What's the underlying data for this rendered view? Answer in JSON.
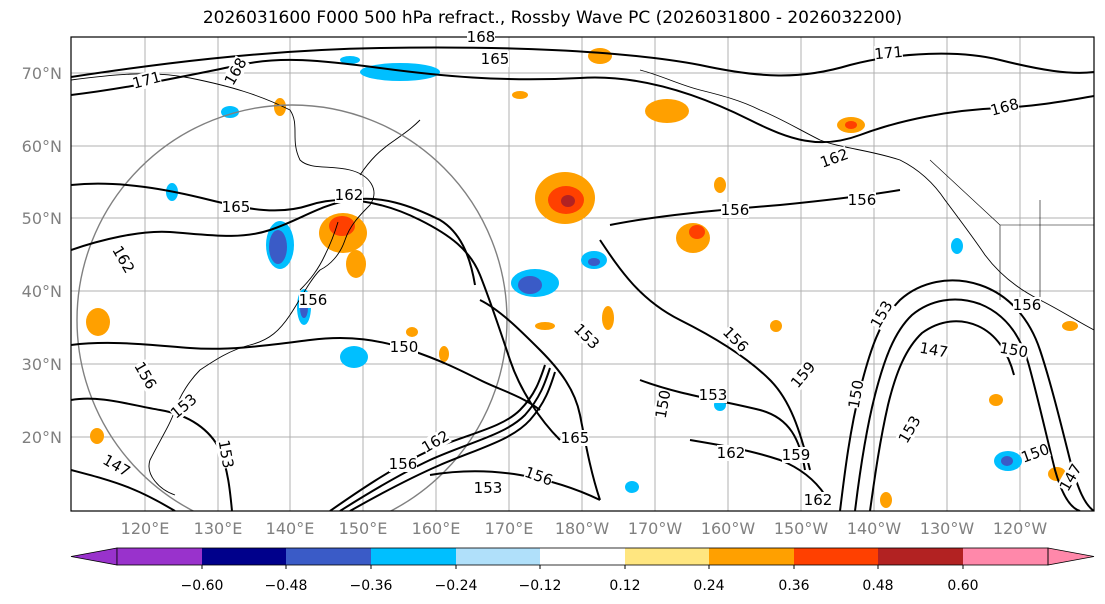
{
  "title": "2026031600 F000 500 hPa refract., Rossby Wave PC (2026031800 - 2026032200)",
  "lat_labels": [
    "70°N",
    "60°N",
    "50°N",
    "40°N",
    "30°N",
    "20°N"
  ],
  "lon_labels": [
    "120°E",
    "130°E",
    "140°E",
    "150°E",
    "160°E",
    "170°E",
    "180°W",
    "170°W",
    "160°W",
    "150°W",
    "140°W",
    "130°W",
    "120°W"
  ],
  "colorbar": {
    "colors": [
      "#9932cc",
      "#00008b",
      "#3a5bc7",
      "#00bfff",
      "#b0e0fa",
      "#ffffff",
      "#ffe680",
      "#ffa000",
      "#ff4000",
      "#b22222",
      "#ff88aa"
    ],
    "tick_labels": [
      "−0.60",
      "−0.48",
      "−0.36",
      "−0.24",
      "−0.12",
      "0.12",
      "0.24",
      "0.36",
      "0.48",
      "0.60"
    ]
  },
  "contour_labels": [
    "168",
    "165",
    "171",
    "171",
    "168",
    "168",
    "162",
    "165",
    "156",
    "156",
    "162",
    "156",
    "150",
    "153",
    "162",
    "156",
    "153",
    "156",
    "150",
    "147",
    "150",
    "156",
    "153",
    "150",
    "147",
    "153",
    "159",
    "162",
    "159",
    "156",
    "153",
    "153",
    "150",
    "162",
    "165",
    "162",
    "153",
    "156",
    "147"
  ],
  "colors": {
    "contour": "#000000",
    "coast": "#000000",
    "grid": "#b0b0b0",
    "circle": "#808080"
  }
}
